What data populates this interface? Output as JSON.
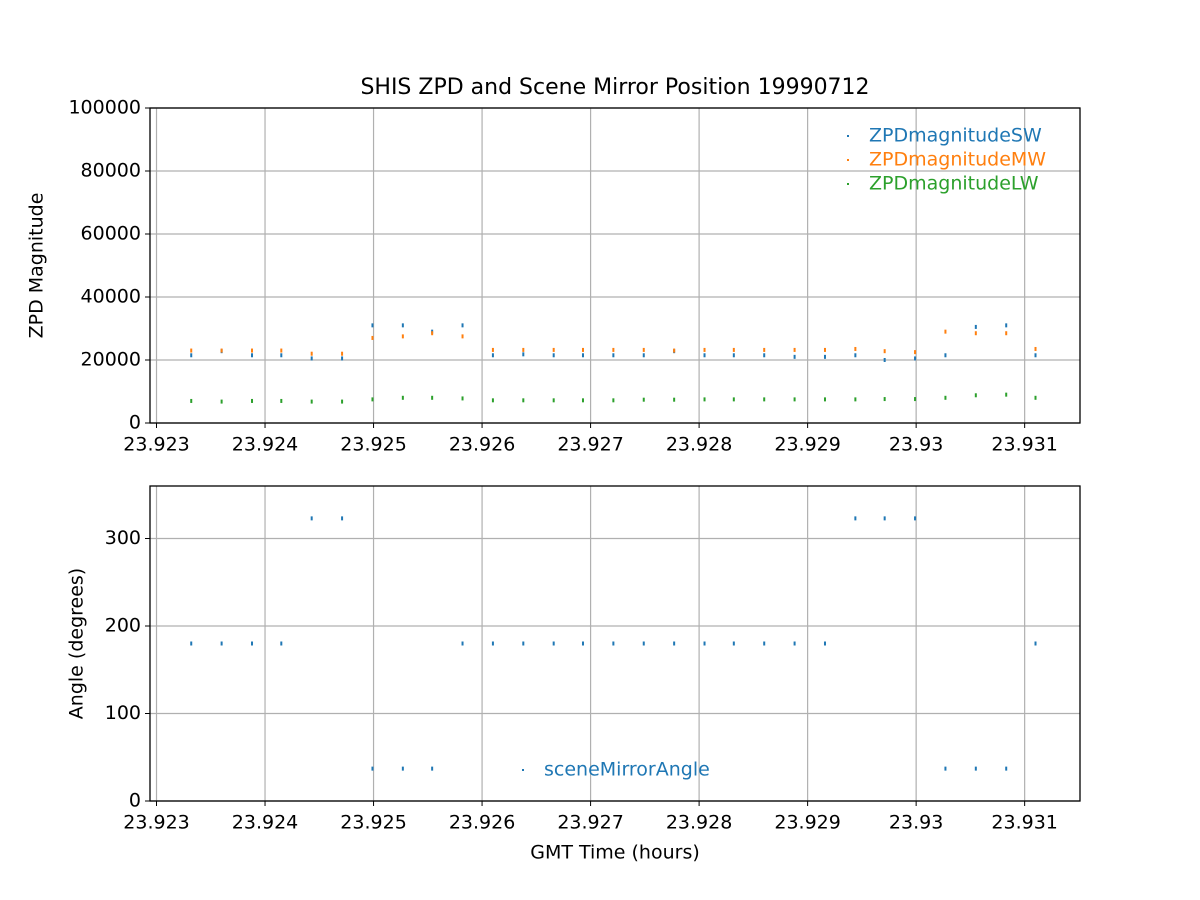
{
  "chart_data": [
    {
      "type": "scatter",
      "title": "SHIS ZPD and Scene Mirror Position 19990712",
      "y_label": "ZPD Magnitude",
      "x": [
        23.92332,
        23.9236,
        23.92388,
        23.92415,
        23.92443,
        23.92471,
        23.92499,
        23.92527,
        23.92554,
        23.92582,
        23.9261,
        23.92638,
        23.92666,
        23.92693,
        23.92721,
        23.92749,
        23.92777,
        23.92805,
        23.92832,
        23.9286,
        23.92888,
        23.92916,
        23.92944,
        23.92971,
        23.92999,
        23.93027,
        23.93055,
        23.93083,
        23.9311
      ],
      "series": [
        {
          "name": "ZPDmagnitudeSW",
          "color": "#1f77b4",
          "values": [
            21500,
            22800,
            21500,
            21500,
            20500,
            20500,
            31000,
            31000,
            29000,
            31000,
            21500,
            21800,
            21500,
            21500,
            21500,
            21500,
            22800,
            21500,
            21500,
            21500,
            21000,
            21000,
            21500,
            20000,
            20500,
            21500,
            30500,
            31000,
            21500
          ]
        },
        {
          "name": "ZPDmagnitudeMW",
          "color": "#ff7f0e",
          "values": [
            23000,
            23000,
            23000,
            23000,
            22000,
            22000,
            27000,
            27500,
            28500,
            27500,
            23200,
            23200,
            23200,
            23200,
            23200,
            23200,
            23000,
            23200,
            23200,
            23200,
            23200,
            23200,
            23500,
            22800,
            22500,
            29000,
            28500,
            28500,
            23500
          ]
        },
        {
          "name": "ZPDmagnitudeLW",
          "color": "#2ca02c",
          "values": [
            7000,
            6800,
            7000,
            7000,
            6800,
            6800,
            7500,
            8000,
            8000,
            7800,
            7200,
            7200,
            7200,
            7200,
            7200,
            7400,
            7400,
            7500,
            7500,
            7500,
            7500,
            7500,
            7500,
            7600,
            7600,
            8000,
            8800,
            9000,
            8000
          ]
        }
      ],
      "xlim": [
        23.92294,
        23.93151
      ],
      "xticks": [
        23.923,
        23.924,
        23.925,
        23.926,
        23.927,
        23.928,
        23.929,
        23.93,
        23.931
      ],
      "ylim": [
        0,
        100000
      ],
      "yticks": [
        0,
        20000,
        40000,
        60000,
        80000,
        100000
      ],
      "grid": true,
      "legend": "upper right"
    },
    {
      "type": "scatter",
      "x_label": "GMT Time (hours)",
      "y_label": "Angle (degrees)",
      "x": [
        23.92332,
        23.9236,
        23.92388,
        23.92415,
        23.92443,
        23.92471,
        23.92499,
        23.92527,
        23.92554,
        23.92582,
        23.9261,
        23.92638,
        23.92666,
        23.92693,
        23.92721,
        23.92749,
        23.92777,
        23.92805,
        23.92832,
        23.9286,
        23.92888,
        23.92916,
        23.92944,
        23.92971,
        23.92999,
        23.93027,
        23.93055,
        23.93083,
        23.9311
      ],
      "series": [
        {
          "name": "sceneMirrorAngle",
          "color": "#1f77b4",
          "values": [
            180,
            180,
            180,
            180,
            323,
            323,
            37,
            37,
            37,
            180,
            180,
            180,
            180,
            180,
            180,
            180,
            180,
            180,
            180,
            180,
            180,
            180,
            323,
            323,
            323,
            37,
            37,
            37,
            180
          ]
        }
      ],
      "xlim": [
        23.92294,
        23.93151
      ],
      "xticks": [
        23.923,
        23.924,
        23.925,
        23.926,
        23.927,
        23.928,
        23.929,
        23.93,
        23.931
      ],
      "ylim": [
        0,
        360
      ],
      "yticks": [
        0,
        100,
        200,
        300
      ],
      "grid": true,
      "legend": "lower center"
    }
  ]
}
